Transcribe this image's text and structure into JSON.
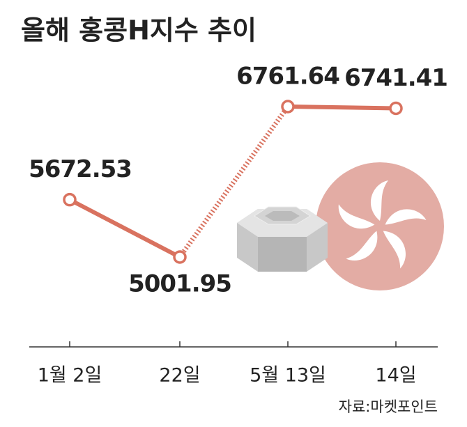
{
  "chart_data": {
    "type": "line",
    "title": "올해 홍콩H지수 추이",
    "categories": [
      "1월 2일",
      "22일",
      "5월 13일",
      "14일"
    ],
    "values": [
      5672.53,
      5001.95,
      6761.64,
      6741.41
    ],
    "value_labels": [
      "5672.53",
      "5001.95",
      "6761.64",
      "6741.41"
    ],
    "color": "#d9725f",
    "source": "자료:마켓포인트"
  }
}
